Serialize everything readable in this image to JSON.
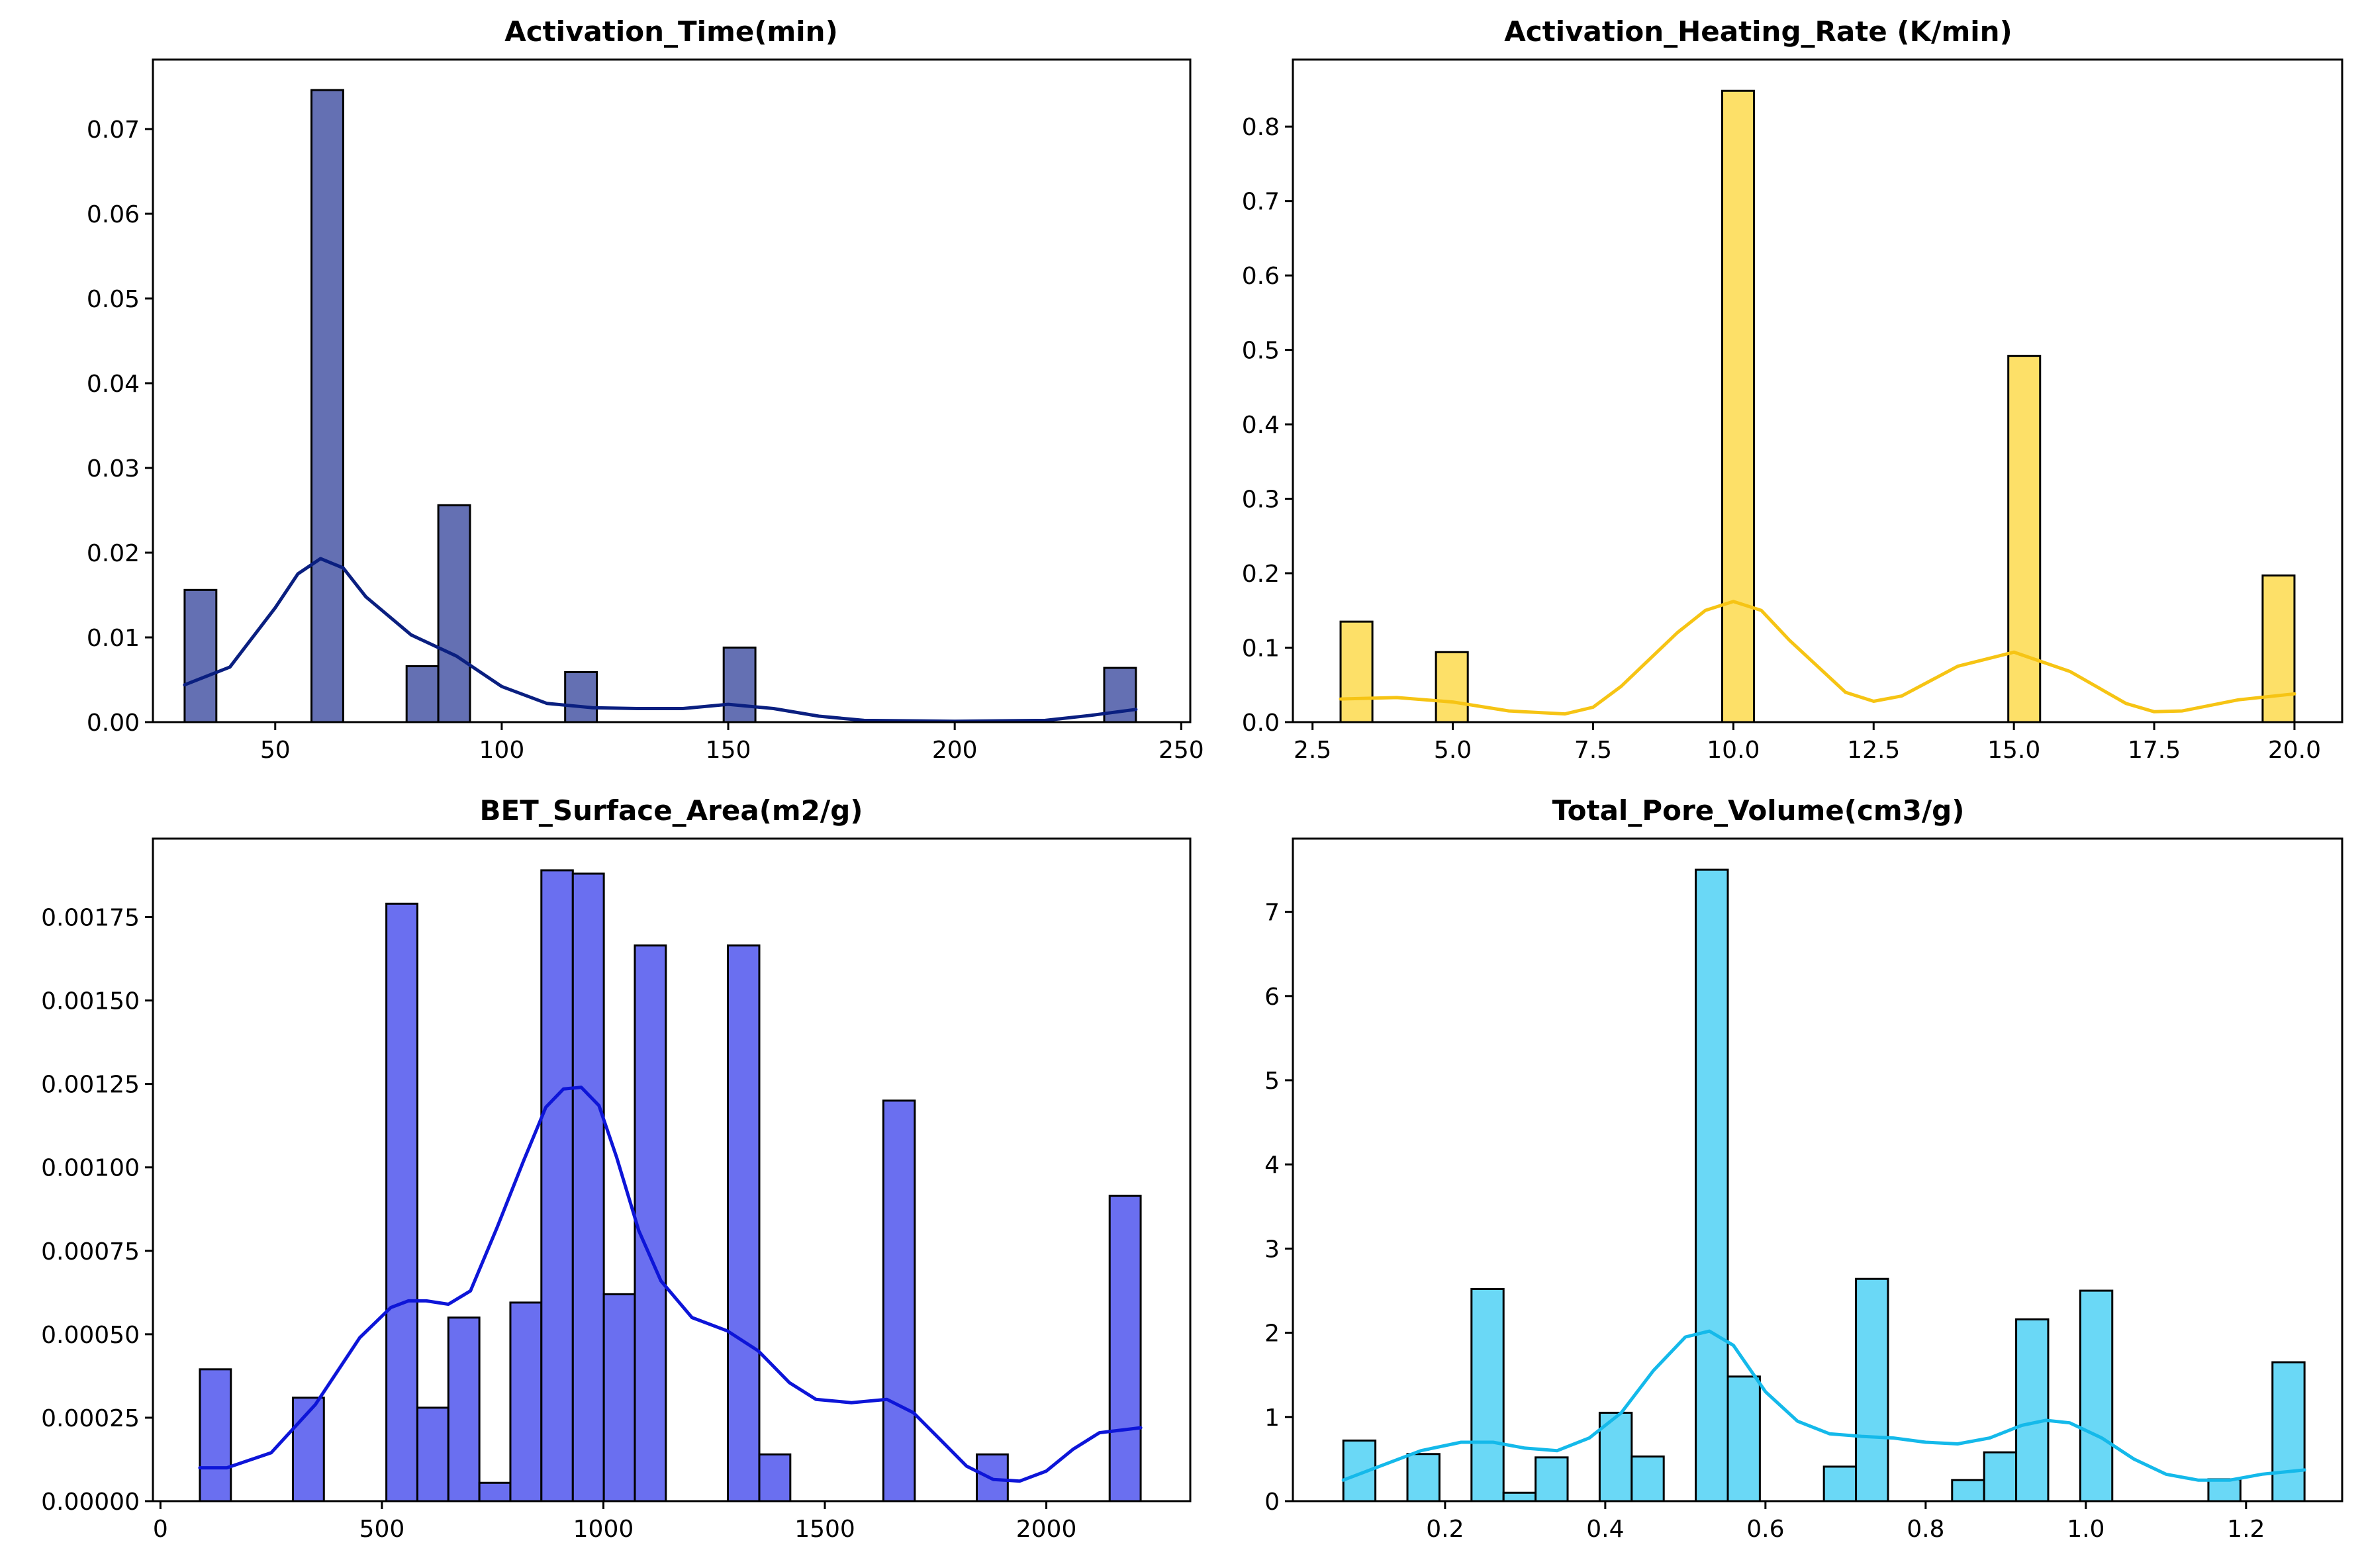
{
  "chart_data": [
    {
      "type": "bar",
      "title": "Activation_Time(min)",
      "xlabel": "",
      "ylabel": "",
      "xlim": [
        23,
        252
      ],
      "ylim": [
        0,
        0.0782
      ],
      "xticks": [
        50,
        100,
        150,
        200,
        250
      ],
      "yticks": [
        0.0,
        0.01,
        0.02,
        0.03,
        0.04,
        0.05,
        0.06,
        0.07
      ],
      "ytick_labels": [
        "0.00",
        "0.01",
        "0.02",
        "0.03",
        "0.04",
        "0.05",
        "0.06",
        "0.07"
      ],
      "bar_color": "#6470b3",
      "kde_color": "#0a1f80",
      "bins": [
        {
          "x0": 30,
          "x1": 37,
          "value": 0.0156
        },
        {
          "x0": 58,
          "x1": 65,
          "value": 0.0746
        },
        {
          "x0": 79,
          "x1": 86,
          "value": 0.0066
        },
        {
          "x0": 86,
          "x1": 93,
          "value": 0.0256
        },
        {
          "x0": 114,
          "x1": 121,
          "value": 0.0059
        },
        {
          "x0": 149,
          "x1": 156,
          "value": 0.0088
        },
        {
          "x0": 233,
          "x1": 240,
          "value": 0.0064
        }
      ],
      "kde": {
        "x": [
          30,
          40,
          50,
          55,
          60,
          65,
          70,
          80,
          90,
          100,
          110,
          120,
          130,
          140,
          150,
          160,
          170,
          180,
          200,
          220,
          230,
          240
        ],
        "y": [
          0.0044,
          0.0065,
          0.0135,
          0.0175,
          0.0193,
          0.0182,
          0.0148,
          0.0103,
          0.0078,
          0.0042,
          0.0022,
          0.0017,
          0.0016,
          0.0016,
          0.0021,
          0.0016,
          0.0007,
          0.0002,
          0.0001,
          0.0002,
          0.0008,
          0.0015
        ]
      }
    },
    {
      "type": "bar",
      "title": "Activation_Heating_Rate (K/min)",
      "xlabel": "",
      "ylabel": "",
      "xlim": [
        2.15,
        20.85
      ],
      "ylim": [
        0,
        0.89
      ],
      "xticks": [
        2.5,
        5.0,
        7.5,
        10.0,
        12.5,
        15.0,
        17.5,
        20.0
      ],
      "xtick_labels": [
        "2.5",
        "5.0",
        "7.5",
        "10.0",
        "12.5",
        "15.0",
        "17.5",
        "20.0"
      ],
      "yticks": [
        0.0,
        0.1,
        0.2,
        0.3,
        0.4,
        0.5,
        0.6,
        0.7,
        0.8
      ],
      "ytick_labels": [
        "0.0",
        "0.1",
        "0.2",
        "0.3",
        "0.4",
        "0.5",
        "0.6",
        "0.7",
        "0.8"
      ],
      "bar_color": "#fde068",
      "kde_color": "#f6c414",
      "bins": [
        {
          "x0": 3.0,
          "x1": 3.567,
          "value": 0.135
        },
        {
          "x0": 4.7,
          "x1": 5.267,
          "value": 0.094
        },
        {
          "x0": 9.8,
          "x1": 10.367,
          "value": 0.848
        },
        {
          "x0": 14.9,
          "x1": 15.467,
          "value": 0.492
        },
        {
          "x0": 19.433,
          "x1": 20.0,
          "value": 0.197
        }
      ],
      "kde": {
        "x": [
          3.0,
          4.0,
          5.0,
          6.0,
          7.0,
          7.5,
          8.0,
          9.0,
          9.5,
          10.0,
          10.5,
          11.0,
          12.0,
          12.5,
          13.0,
          14.0,
          15.0,
          16.0,
          17.0,
          17.5,
          18.0,
          19.0,
          20.0
        ],
        "y": [
          0.031,
          0.033,
          0.027,
          0.015,
          0.011,
          0.02,
          0.048,
          0.12,
          0.15,
          0.162,
          0.15,
          0.11,
          0.04,
          0.028,
          0.035,
          0.075,
          0.094,
          0.068,
          0.025,
          0.014,
          0.015,
          0.03,
          0.038
        ]
      }
    },
    {
      "type": "bar",
      "title": "BET_Surface_Area(m2/g)",
      "xlabel": "",
      "ylabel": "",
      "xlim": [
        -17,
        2325
      ],
      "ylim": [
        0,
        0.001985
      ],
      "xticks": [
        0,
        500,
        1000,
        1500,
        2000
      ],
      "yticks": [
        0.0,
        0.00025,
        0.0005,
        0.00075,
        0.001,
        0.00125,
        0.0015,
        0.00175
      ],
      "ytick_labels": [
        "0.00000",
        "0.00025",
        "0.00050",
        "0.00075",
        "0.00100",
        "0.00125",
        "0.00150",
        "0.00175"
      ],
      "bar_color": "#6a6ff0",
      "kde_color": "#0d15d8",
      "bins": [
        {
          "x0": 89,
          "x1": 159,
          "value": 0.000395
        },
        {
          "x0": 299,
          "x1": 369,
          "value": 0.00031
        },
        {
          "x0": 510,
          "x1": 580,
          "value": 0.00179
        },
        {
          "x0": 580,
          "x1": 650,
          "value": 0.00028
        },
        {
          "x0": 650,
          "x1": 720,
          "value": 0.00055
        },
        {
          "x0": 720,
          "x1": 790,
          "value": 5.5e-05
        },
        {
          "x0": 790,
          "x1": 860,
          "value": 0.000595
        },
        {
          "x0": 860,
          "x1": 931,
          "value": 0.00189
        },
        {
          "x0": 931,
          "x1": 1001,
          "value": 0.00188
        },
        {
          "x0": 1001,
          "x1": 1071,
          "value": 0.00062
        },
        {
          "x0": 1071,
          "x1": 1141,
          "value": 0.001665
        },
        {
          "x0": 1281,
          "x1": 1352,
          "value": 0.001665
        },
        {
          "x0": 1352,
          "x1": 1422,
          "value": 0.00014
        },
        {
          "x0": 1632,
          "x1": 1703,
          "value": 0.0012
        },
        {
          "x0": 1843,
          "x1": 1913,
          "value": 0.00014
        },
        {
          "x0": 2143,
          "x1": 2213,
          "value": 0.000915
        }
      ],
      "kde": {
        "x": [
          89,
          150,
          250,
          350,
          450,
          520,
          560,
          600,
          650,
          700,
          760,
          820,
          870,
          910,
          950,
          990,
          1030,
          1080,
          1130,
          1200,
          1280,
          1350,
          1420,
          1480,
          1560,
          1640,
          1700,
          1760,
          1820,
          1880,
          1940,
          2000,
          2060,
          2120,
          2213
        ],
        "y": [
          0.0001,
          0.0001,
          0.000145,
          0.00029,
          0.00049,
          0.00058,
          0.0006,
          0.0006,
          0.00059,
          0.00063,
          0.00082,
          0.00102,
          0.00118,
          0.001235,
          0.00124,
          0.001185,
          0.00103,
          0.00081,
          0.00066,
          0.00055,
          0.00051,
          0.00045,
          0.000355,
          0.000305,
          0.000295,
          0.000305,
          0.000265,
          0.000185,
          0.000105,
          6.5e-05,
          6e-05,
          9e-05,
          0.000155,
          0.000205,
          0.00022
        ]
      }
    },
    {
      "type": "bar",
      "title": "Total_Pore_Volume(cm3/g)",
      "xlabel": "",
      "ylabel": "",
      "xlim": [
        0.01,
        1.32
      ],
      "ylim": [
        0,
        7.87
      ],
      "xticks": [
        0.2,
        0.4,
        0.6,
        0.8,
        1.0,
        1.2
      ],
      "xtick_labels": [
        "0.2",
        "0.4",
        "0.6",
        "0.8",
        "1.0",
        "1.2"
      ],
      "yticks": [
        0,
        1,
        2,
        3,
        4,
        5,
        6,
        7
      ],
      "bar_color": "#6ad8f6",
      "kde_color": "#14b9ea",
      "bins": [
        {
          "x0": 0.073,
          "x1": 0.113,
          "value": 0.72
        },
        {
          "x0": 0.153,
          "x1": 0.193,
          "value": 0.56
        },
        {
          "x0": 0.233,
          "x1": 0.273,
          "value": 2.52
        },
        {
          "x0": 0.273,
          "x1": 0.313,
          "value": 0.1
        },
        {
          "x0": 0.313,
          "x1": 0.353,
          "value": 0.52
        },
        {
          "x0": 0.393,
          "x1": 0.433,
          "value": 1.05
        },
        {
          "x0": 0.433,
          "x1": 0.473,
          "value": 0.53
        },
        {
          "x0": 0.513,
          "x1": 0.553,
          "value": 7.5
        },
        {
          "x0": 0.553,
          "x1": 0.593,
          "value": 1.48
        },
        {
          "x0": 0.673,
          "x1": 0.713,
          "value": 0.41
        },
        {
          "x0": 0.713,
          "x1": 0.753,
          "value": 2.64
        },
        {
          "x0": 0.833,
          "x1": 0.873,
          "value": 0.25
        },
        {
          "x0": 0.873,
          "x1": 0.913,
          "value": 0.58
        },
        {
          "x0": 0.913,
          "x1": 0.953,
          "value": 2.16
        },
        {
          "x0": 0.993,
          "x1": 1.033,
          "value": 2.5
        },
        {
          "x0": 1.153,
          "x1": 1.193,
          "value": 0.26
        },
        {
          "x0": 1.233,
          "x1": 1.273,
          "value": 1.65
        }
      ],
      "kde": {
        "x": [
          0.073,
          0.12,
          0.17,
          0.22,
          0.26,
          0.3,
          0.34,
          0.38,
          0.42,
          0.46,
          0.5,
          0.53,
          0.56,
          0.6,
          0.64,
          0.68,
          0.72,
          0.76,
          0.8,
          0.84,
          0.88,
          0.92,
          0.95,
          0.98,
          1.02,
          1.06,
          1.1,
          1.14,
          1.18,
          1.22,
          1.273
        ],
        "y": [
          0.25,
          0.42,
          0.6,
          0.7,
          0.7,
          0.63,
          0.6,
          0.75,
          1.05,
          1.55,
          1.95,
          2.02,
          1.85,
          1.3,
          0.95,
          0.8,
          0.77,
          0.75,
          0.7,
          0.68,
          0.75,
          0.9,
          0.96,
          0.93,
          0.75,
          0.5,
          0.32,
          0.25,
          0.25,
          0.32,
          0.37
        ]
      }
    }
  ]
}
